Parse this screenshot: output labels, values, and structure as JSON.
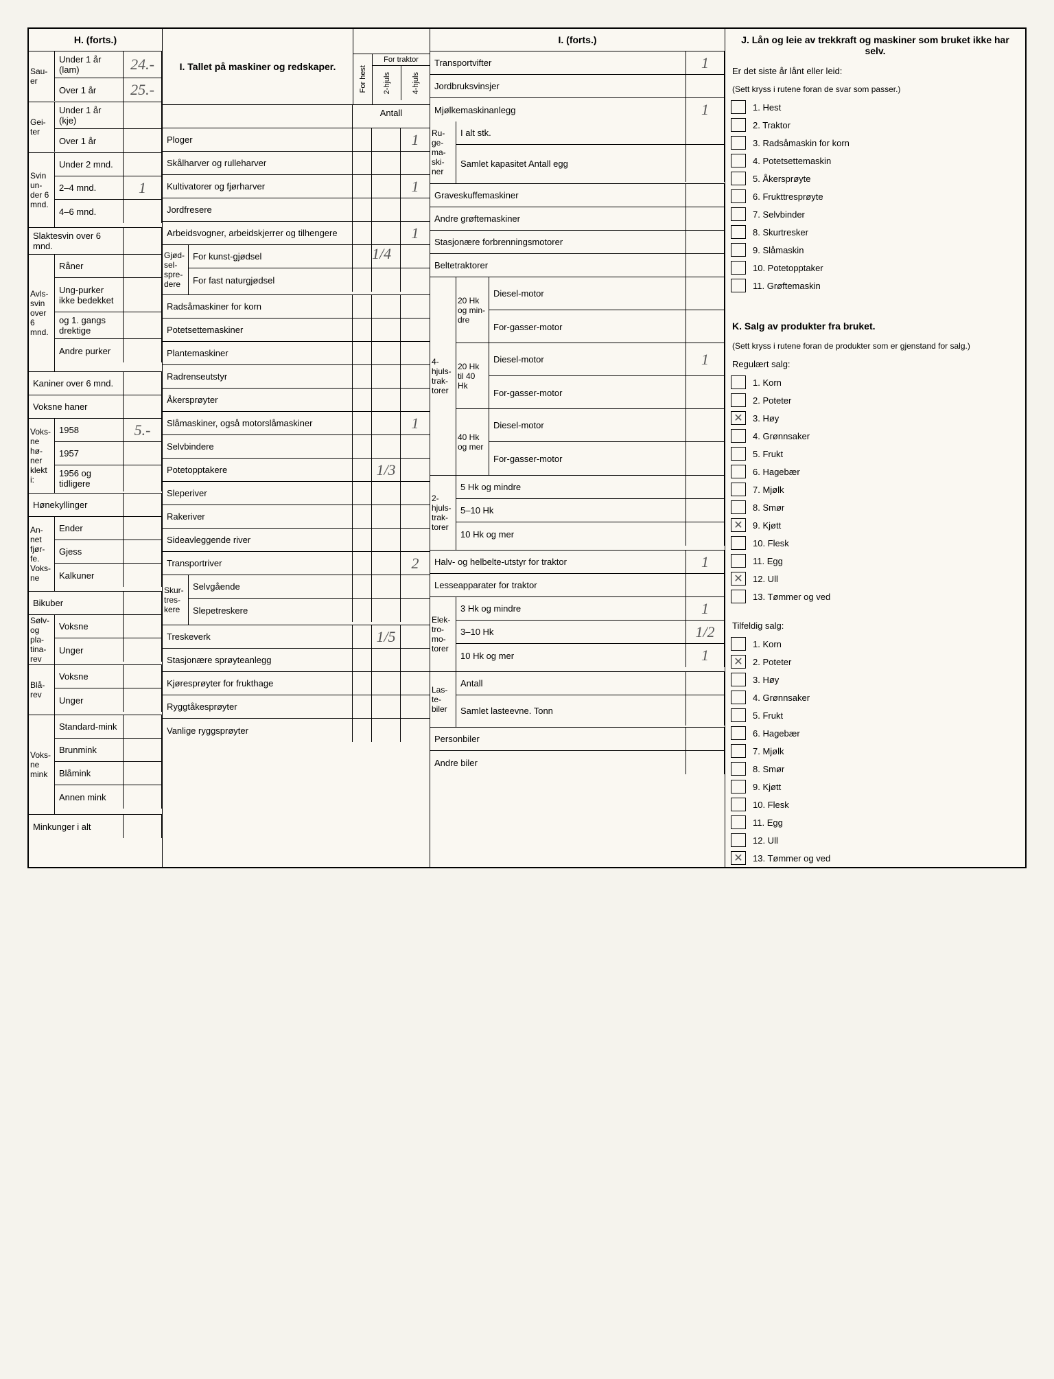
{
  "sections": {
    "H": {
      "title": "H. (forts.)"
    },
    "I": {
      "title": "I. Tallet på maskiner og redskaper."
    },
    "I2": {
      "title": "I. (forts.)"
    },
    "J": {
      "title": "J. Lån og leie av trekkraft og maskiner som bruket ikke har selv.",
      "subtitle": "Er det siste år lånt eller leid:",
      "note": "(Sett kryss i rutene foran de svar som passer.)",
      "items": [
        "1. Hest",
        "2. Traktor",
        "3. Radsåmaskin for korn",
        "4. Potetsettemaskin",
        "5. Åkersprøyte",
        "6. Frukttresprøyte",
        "7. Selvbinder",
        "8. Skurtresker",
        "9. Slåmaskin",
        "10. Potetopptaker",
        "11. Grøftemaskin"
      ]
    },
    "K": {
      "title": "K. Salg av produkter fra bruket.",
      "note": "(Sett kryss i rutene foran de produkter som er gjenstand for salg.)",
      "reg_title": "Regulært salg:",
      "reg_items": [
        "1. Korn",
        "2. Poteter",
        "3. Høy",
        "4. Grønnsaker",
        "5. Frukt",
        "6. Hagebær",
        "7. Mjølk",
        "8. Smør",
        "9. Kjøtt",
        "10. Flesk",
        "11. Egg",
        "12. Ull",
        "13. Tømmer og ved"
      ],
      "reg_checked": [
        2,
        8,
        11
      ],
      "tilf_title": "Tilfeldig salg:",
      "tilf_items": [
        "1. Korn",
        "2. Poteter",
        "3. Høy",
        "4. Grønnsaker",
        "5. Frukt",
        "6. Hagebær",
        "7. Mjølk",
        "8. Smør",
        "9. Kjøtt",
        "10. Flesk",
        "11. Egg",
        "12. Ull",
        "13. Tømmer og ved"
      ],
      "tilf_checked": [
        1,
        12
      ]
    }
  },
  "H_rows": {
    "sauer": {
      "label": "Sau-er",
      "r1": "Under 1 år (lam)",
      "v1": "24.-",
      "r2": "Over 1 år",
      "v2": "25.-"
    },
    "geiter": {
      "label": "Gei-ter",
      "r1": "Under 1 år (kje)",
      "v1": "",
      "r2": "Over 1 år",
      "v2": ""
    },
    "svin": {
      "label": "Svin un-der 6 mnd.",
      "r1": "Under 2 mnd.",
      "v1": "",
      "r2": "2–4 mnd.",
      "v2": "1",
      "r3": "4–6 mnd.",
      "v3": ""
    },
    "slaktesvin": {
      "label": "Slaktesvin over 6 mnd.",
      "v": ""
    },
    "avlssvin": {
      "label": "Avls-svin over 6 mnd.",
      "r1": "Råner",
      "r2": "Ung-purker ikke bedekket",
      "r3": "og 1. gangs drektige",
      "r4": "Andre purker"
    },
    "kaniner": {
      "label": "Kaniner over 6 mnd."
    },
    "haner": {
      "label": "Voksne haner"
    },
    "honer": {
      "label": "Voks-ne hø-ner klekt i:",
      "r1": "1958",
      "v1": "5.-",
      "r2": "1957",
      "r3": "1956 og tidligere"
    },
    "honekyll": {
      "label": "Hønekyllinger"
    },
    "fjorfe": {
      "label": "An-net fjør-fe. Voks-ne",
      "r1": "Ender",
      "r2": "Gjess",
      "r3": "Kalkuner"
    },
    "bikuber": {
      "label": "Bikuber"
    },
    "solvrev": {
      "label": "Sølv- og pla-tina-rev",
      "r1": "Voksne",
      "r2": "Unger"
    },
    "blarev": {
      "label": "Blå-rev",
      "r1": "Voksne",
      "r2": "Unger"
    },
    "mink": {
      "label": "Voks-ne mink",
      "r1": "Standard-mink",
      "r2": "Brunmink",
      "r3": "Blåmink",
      "r4": "Annen mink"
    },
    "minkunger": {
      "label": "Minkunger i alt"
    }
  },
  "I_cols": {
    "for_hest": "For hest",
    "for_traktor": "For traktor",
    "h2": "2-hjuls",
    "h4": "4-hjuls",
    "antall": "Antall"
  },
  "I_rows": [
    {
      "label": "Ploger",
      "v": "1"
    },
    {
      "label": "Skålharver og rulleharver",
      "v": ""
    },
    {
      "label": "Kultivatorer og fjørharver",
      "v": "1"
    },
    {
      "label": "Jordfresere",
      "v": ""
    },
    {
      "label": "Arbeidsvogner, arbeidskjerrer og tilhengere",
      "v": "1"
    },
    {
      "label": "Gjød-sel-spre-dere",
      "sub1": "For kunst-gjødsel",
      "sv1": "1/4",
      "sub2": "For fast naturgjødsel",
      "sv2": ""
    },
    {
      "label": "Radsåmaskiner for korn",
      "v": ""
    },
    {
      "label": "Potetsettemaskiner",
      "v": ""
    },
    {
      "label": "Plantemaskiner",
      "v": ""
    },
    {
      "label": "Radrenseutstyr",
      "v": ""
    },
    {
      "label": "Åkersprøyter",
      "v": ""
    },
    {
      "label": "Slåmaskiner, også motorslåmaskiner",
      "v": "1"
    },
    {
      "label": "Selvbindere",
      "v": ""
    },
    {
      "label": "Potetopptakere",
      "v": "1/3"
    },
    {
      "label": "Sleperiver",
      "v": ""
    },
    {
      "label": "Rakeriver",
      "v": ""
    },
    {
      "label": "Sideavleggende river",
      "v": ""
    },
    {
      "label": "Transportriver",
      "v": "2"
    },
    {
      "label": "Skur-tres-kere",
      "sub1": "Selvgående",
      "sub2": "Slepetreskere"
    },
    {
      "label": "Treskeverk",
      "v": "1/5"
    },
    {
      "label": "Stasjonære sprøyteanlegg",
      "v": ""
    },
    {
      "label": "Kjøresprøyter for frukthage",
      "v": ""
    },
    {
      "label": "Ryggtåkesprøyter",
      "v": ""
    },
    {
      "label": "Vanlige ryggsprøyter",
      "v": ""
    }
  ],
  "I2_rows": {
    "simple": [
      {
        "label": "Transportvifter",
        "v": "1"
      },
      {
        "label": "Jordbruksvinsjer",
        "v": ""
      },
      {
        "label": "Mjølkemaskinanlegg",
        "v": "1"
      }
    ],
    "ruge": {
      "label": "Ru-ge-ma-ski-ner",
      "r1": "I alt stk.",
      "r2": "Samlet kapasitet Antall egg"
    },
    "grave": {
      "label": "Graveskuffemaskiner",
      "v": ""
    },
    "grofte": {
      "label": "Andre grøftemaskiner",
      "v": ""
    },
    "forbr": {
      "label": "Stasjonære forbrenningsmotorer",
      "v": ""
    },
    "belte": {
      "label": "Beltetraktorer",
      "v": ""
    },
    "trakt4": {
      "label": "4-hjuls-trak-torer",
      "g1": "20 Hk og min-dre",
      "g1a": "Diesel-motor",
      "g1b": "For-gasser-motor",
      "g2": "20 Hk til 40 Hk",
      "g2a": "Diesel-motor",
      "g2av": "1",
      "g2b": "For-gasser-motor",
      "g3": "40 Hk og mer",
      "g3a": "Diesel-motor",
      "g3b": "For-gasser-motor"
    },
    "trakt2": {
      "label": "2-hjuls-trak-torer",
      "r1": "5 Hk og mindre",
      "r2": "5–10 Hk",
      "r3": "10 Hk og mer"
    },
    "halv": {
      "label": "Halv- og helbelte-utstyr for traktor",
      "v": "1"
    },
    "lesse": {
      "label": "Lesseapparater for traktor",
      "v": ""
    },
    "elek": {
      "label": "Elek-tro-mo-torer",
      "r1": "3 Hk og mindre",
      "v1": "1",
      "r2": "3–10 Hk",
      "v2": "1/2",
      "r3": "10 Hk og mer",
      "v3": "1"
    },
    "laste": {
      "label": "Las-te-biler",
      "r1": "Antall",
      "r2": "Samlet lasteevne. Tonn"
    },
    "person": {
      "label": "Personbiler",
      "v": ""
    },
    "andre": {
      "label": "Andre biler",
      "v": ""
    }
  }
}
